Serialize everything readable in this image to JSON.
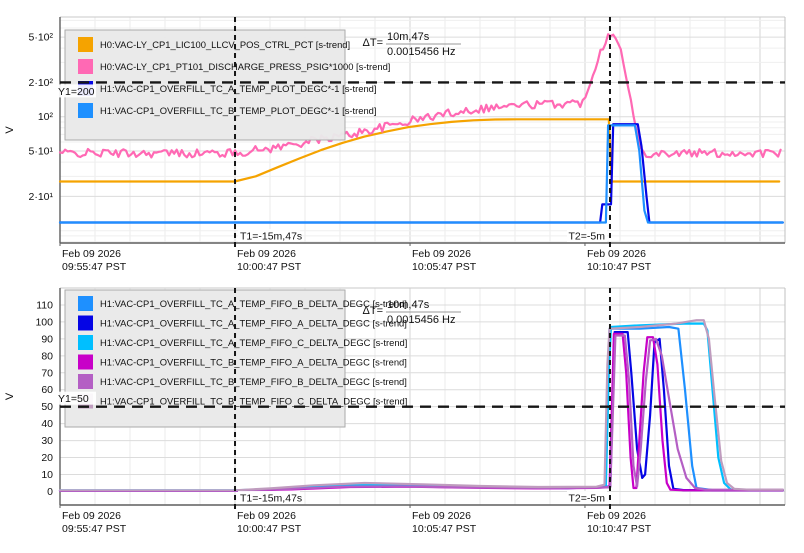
{
  "app": {
    "background": "#ffffff"
  },
  "chart_data": [
    {
      "type": "line",
      "title": "",
      "xlabel": "",
      "ylabel": "V",
      "scale": "log",
      "ylim": [
        7.8,
        750
      ],
      "grid": true,
      "legend_position": "top-left",
      "yticks": [
        {
          "v": 500,
          "label": "5·10²"
        },
        {
          "v": 200,
          "label": "2·10²"
        },
        {
          "v": 100,
          "label": "10²"
        },
        {
          "v": 50,
          "label": "5·10¹"
        },
        {
          "v": 20,
          "label": "2·10¹"
        }
      ],
      "minor_yticks": [
        8,
        9,
        10,
        30,
        40,
        60,
        70,
        80,
        90,
        300,
        400,
        600,
        700
      ],
      "xticks": [
        {
          "f": 0.0,
          "line1": "Feb 09 2026",
          "line2": "09:55:47 PST"
        },
        {
          "f": 0.2414,
          "line1": "Feb 09 2026",
          "line2": "10:00:47 PST"
        },
        {
          "f": 0.4828,
          "line1": "Feb 09 2026",
          "line2": "10:05:47 PST"
        },
        {
          "f": 0.7241,
          "line1": "Feb 09 2026",
          "line2": "10:10:47 PST"
        }
      ],
      "minute_grid_step": 0.0482759,
      "delta_t": {
        "label": "ΔT=",
        "time": "10m,47s",
        "freq": "0.0015456 Hz"
      },
      "cursors": {
        "t1": {
          "f": 0.2414,
          "label": "T1=-15m,47s"
        },
        "t2": {
          "f": 0.7586,
          "label": "T2=-5m"
        },
        "y1": {
          "value": 200,
          "label": "Y1=200"
        }
      },
      "series": [
        {
          "label": "H0:VAC-LY_CP1_LIC100_LLCV_POS_CTRL_PCT [s-trend]",
          "color": "#F5A300",
          "points": [
            [
              0,
              27
            ],
            [
              0.241,
              27
            ],
            [
              0.27,
              30
            ],
            [
              0.3,
              36
            ],
            [
              0.33,
              43
            ],
            [
              0.36,
              51
            ],
            [
              0.39,
              59
            ],
            [
              0.42,
              67
            ],
            [
              0.45,
              74
            ],
            [
              0.48,
              81
            ],
            [
              0.51,
              86
            ],
            [
              0.54,
              90
            ],
            [
              0.57,
              93
            ],
            [
              0.6,
              94.5
            ],
            [
              0.63,
              95
            ],
            [
              0.757,
              95
            ],
            [
              0.761,
              27
            ],
            [
              0.992,
              27
            ]
          ]
        },
        {
          "label": "H0:VAC-LY_CP1_PT101_DISCHARGE_PRESS_PSIG*1000 [s-trend]",
          "color": "#FF69B4",
          "noise": {
            "amp": 0.085,
            "step": 0.0035,
            "seed": 42
          },
          "points": [
            [
              0,
              48
            ],
            [
              0.241,
              48
            ],
            [
              0.3,
              54
            ],
            [
              0.35,
              62
            ],
            [
              0.4,
              70
            ],
            [
              0.45,
              82
            ],
            [
              0.5,
              97
            ],
            [
              0.55,
              112
            ],
            [
              0.6,
              122
            ],
            [
              0.65,
              128
            ],
            [
              0.7,
              131
            ],
            [
              0.723,
              133
            ],
            [
              0.731,
              200
            ],
            [
              0.74,
              300
            ],
            [
              0.752,
              460
            ],
            [
              0.758,
              540
            ],
            [
              0.763,
              555
            ],
            [
              0.768,
              520
            ],
            [
              0.776,
              300
            ],
            [
              0.786,
              150
            ],
            [
              0.793,
              85
            ],
            [
              0.8,
              52
            ],
            [
              0.81,
              48
            ],
            [
              0.997,
              48
            ]
          ]
        },
        {
          "label": "H1:VAC-CP1_OVERFILL_TC_A_TEMP_PLOT_DEGC*-1 [s-trend]",
          "color": "#0505E5",
          "points": [
            [
              0,
              11.8
            ],
            [
              0.745,
              11.8
            ],
            [
              0.748,
              17
            ],
            [
              0.76,
              17
            ],
            [
              0.763,
              86
            ],
            [
              0.797,
              86
            ],
            [
              0.802,
              55
            ],
            [
              0.809,
              20
            ],
            [
              0.813,
              11.8
            ],
            [
              0.997,
              11.8
            ]
          ]
        },
        {
          "label": "H1:VAC-CP1_OVERFILL_TC_B_TEMP_PLOT_DEGC*-1 [s-trend]",
          "color": "#1E90FF",
          "points": [
            [
              0,
              11.8
            ],
            [
              0.753,
              11.8
            ],
            [
              0.756,
              84
            ],
            [
              0.793,
              84
            ],
            [
              0.799,
              50
            ],
            [
              0.806,
              15
            ],
            [
              0.811,
              11.8
            ],
            [
              0.997,
              11.8
            ]
          ]
        }
      ]
    },
    {
      "type": "line",
      "title": "",
      "xlabel": "",
      "ylabel": "V",
      "scale": "linear",
      "ylim": [
        -8,
        120
      ],
      "grid": true,
      "legend_position": "top-left",
      "yticks": [
        {
          "v": 110,
          "label": "110"
        },
        {
          "v": 100,
          "label": "100"
        },
        {
          "v": 90,
          "label": "90"
        },
        {
          "v": 80,
          "label": "80"
        },
        {
          "v": 70,
          "label": "70"
        },
        {
          "v": 60,
          "label": "60"
        },
        {
          "v": 50,
          "label": "50"
        },
        {
          "v": 40,
          "label": "40"
        },
        {
          "v": 30,
          "label": "30"
        },
        {
          "v": 20,
          "label": "20"
        },
        {
          "v": 10,
          "label": "10"
        },
        {
          "v": 0,
          "label": "0"
        }
      ],
      "minor_yticks": [],
      "xticks": [
        {
          "f": 0.0,
          "line1": "Feb 09 2026",
          "line2": "09:55:47 PST"
        },
        {
          "f": 0.2414,
          "line1": "Feb 09 2026",
          "line2": "10:00:47 PST"
        },
        {
          "f": 0.4828,
          "line1": "Feb 09 2026",
          "line2": "10:05:47 PST"
        },
        {
          "f": 0.7241,
          "line1": "Feb 09 2026",
          "line2": "10:10:47 PST"
        }
      ],
      "minute_grid_step": 0.0482759,
      "delta_t": {
        "label": "ΔT=",
        "time": "10m,47s",
        "freq": "0.0015456 Hz"
      },
      "cursors": {
        "t1": {
          "f": 0.2414,
          "label": "T1=-15m,47s"
        },
        "t2": {
          "f": 0.7586,
          "label": "T2=-5m"
        },
        "y1": {
          "value": 50,
          "label": "Y1=50"
        }
      },
      "series": [
        {
          "label": "H1:VAC-CP1_OVERFILL_TC_A_TEMP_FIFO_B_DELTA_DEGC [s-trend]",
          "color": "#1E90FF",
          "points": [
            [
              0,
              0.5
            ],
            [
              0.241,
              0.5
            ],
            [
              0.3,
              1.5
            ],
            [
              0.36,
              3
            ],
            [
              0.43,
              3.8
            ],
            [
              0.5,
              3.2
            ],
            [
              0.58,
              2.4
            ],
            [
              0.66,
              2
            ],
            [
              0.74,
              2.3
            ],
            [
              0.752,
              3
            ],
            [
              0.755,
              60
            ],
            [
              0.758,
              96
            ],
            [
              0.8,
              96
            ],
            [
              0.84,
              97
            ],
            [
              0.853,
              96
            ],
            [
              0.862,
              60
            ],
            [
              0.872,
              15
            ],
            [
              0.878,
              2
            ],
            [
              0.9,
              0.8
            ],
            [
              0.997,
              0.8
            ]
          ]
        },
        {
          "label": "H1:VAC-CP1_OVERFILL_TC_A_TEMP_FIFO_A_DELTA_DEGC [s-trend]",
          "color": "#0505E5",
          "points": [
            [
              0,
              0.4
            ],
            [
              0.241,
              0.4
            ],
            [
              0.31,
              1.4
            ],
            [
              0.38,
              3
            ],
            [
              0.45,
              3.6
            ],
            [
              0.52,
              3
            ],
            [
              0.6,
              2.2
            ],
            [
              0.7,
              1.9
            ],
            [
              0.75,
              2.5
            ],
            [
              0.759,
              3
            ],
            [
              0.762,
              50
            ],
            [
              0.765,
              94
            ],
            [
              0.783,
              94
            ],
            [
              0.788,
              70
            ],
            [
              0.796,
              25
            ],
            [
              0.803,
              8
            ],
            [
              0.807,
              10
            ],
            [
              0.814,
              45
            ],
            [
              0.82,
              88
            ],
            [
              0.827,
              90
            ],
            [
              0.833,
              60
            ],
            [
              0.84,
              15
            ],
            [
              0.846,
              1.5
            ],
            [
              0.86,
              0.8
            ],
            [
              0.997,
              0.8
            ]
          ]
        },
        {
          "label": "H1:VAC-CP1_OVERFILL_TC_A_TEMP_FIFO_C_DELTA_DEGC [s-trend]",
          "color": "#00BFFF",
          "points": [
            [
              0,
              0.6
            ],
            [
              0.241,
              0.6
            ],
            [
              0.3,
              1.6
            ],
            [
              0.37,
              3.2
            ],
            [
              0.44,
              4
            ],
            [
              0.52,
              3.4
            ],
            [
              0.6,
              2.5
            ],
            [
              0.68,
              2.1
            ],
            [
              0.74,
              2.4
            ],
            [
              0.753,
              3.5
            ],
            [
              0.757,
              70
            ],
            [
              0.76,
              97
            ],
            [
              0.8,
              98
            ],
            [
              0.86,
              99
            ],
            [
              0.888,
              99
            ],
            [
              0.893,
              95
            ],
            [
              0.9,
              60
            ],
            [
              0.908,
              20
            ],
            [
              0.916,
              5
            ],
            [
              0.925,
              1.2
            ],
            [
              0.95,
              0.8
            ],
            [
              0.997,
              0.8
            ]
          ]
        },
        {
          "label": "H1:VAC-CP1_OVERFILL_TC_B_TEMP_FIFO_A_DELTA_DEGC [s-trend]",
          "color": "#C800C8",
          "points": [
            [
              0,
              0.4
            ],
            [
              0.241,
              0.4
            ],
            [
              0.32,
              1.2
            ],
            [
              0.4,
              2.6
            ],
            [
              0.48,
              2.8
            ],
            [
              0.56,
              2.2
            ],
            [
              0.66,
              1.8
            ],
            [
              0.74,
              2.1
            ],
            [
              0.758,
              2.5
            ],
            [
              0.761,
              45
            ],
            [
              0.764,
              93
            ],
            [
              0.776,
              93
            ],
            [
              0.781,
              70
            ],
            [
              0.787,
              20
            ],
            [
              0.791,
              2
            ],
            [
              0.795,
              2
            ],
            [
              0.799,
              30
            ],
            [
              0.805,
              70
            ],
            [
              0.81,
              91
            ],
            [
              0.818,
              91
            ],
            [
              0.824,
              75
            ],
            [
              0.831,
              30
            ],
            [
              0.837,
              5
            ],
            [
              0.842,
              1
            ],
            [
              0.86,
              0.7
            ],
            [
              0.997,
              0.7
            ]
          ]
        },
        {
          "label": "H1:VAC-CP1_OVERFILL_TC_B_TEMP_FIFO_B_DELTA_DEGC [s-trend]",
          "color": "#B45FC4",
          "points": [
            [
              0,
              0.5
            ],
            [
              0.241,
              0.5
            ],
            [
              0.31,
              1.3
            ],
            [
              0.39,
              2.8
            ],
            [
              0.47,
              3
            ],
            [
              0.56,
              2.4
            ],
            [
              0.66,
              2
            ],
            [
              0.74,
              2.2
            ],
            [
              0.759,
              2.6
            ],
            [
              0.762,
              40
            ],
            [
              0.766,
              92
            ],
            [
              0.779,
              92
            ],
            [
              0.785,
              65
            ],
            [
              0.791,
              15
            ],
            [
              0.796,
              3
            ],
            [
              0.801,
              25
            ],
            [
              0.808,
              65
            ],
            [
              0.814,
              89
            ],
            [
              0.822,
              90
            ],
            [
              0.83,
              80
            ],
            [
              0.84,
              55
            ],
            [
              0.852,
              25
            ],
            [
              0.864,
              8
            ],
            [
              0.876,
              2
            ],
            [
              0.89,
              1
            ],
            [
              0.997,
              1
            ]
          ]
        },
        {
          "label": "H1:VAC-CP1_OVERFILL_TC_B_TEMP_FIFO_C_DELTA_DEGC [s-trend]",
          "color": "#BF9CBE",
          "points": [
            [
              0,
              0.7
            ],
            [
              0.241,
              0.7
            ],
            [
              0.29,
              1.8
            ],
            [
              0.35,
              3.6
            ],
            [
              0.42,
              5
            ],
            [
              0.5,
              4.2
            ],
            [
              0.58,
              3.2
            ],
            [
              0.66,
              2.6
            ],
            [
              0.74,
              2.8
            ],
            [
              0.751,
              4
            ],
            [
              0.755,
              75
            ],
            [
              0.758,
              96
            ],
            [
              0.8,
              97
            ],
            [
              0.85,
              99
            ],
            [
              0.878,
              101
            ],
            [
              0.888,
              101
            ],
            [
              0.895,
              90
            ],
            [
              0.903,
              55
            ],
            [
              0.912,
              18
            ],
            [
              0.92,
              5
            ],
            [
              0.93,
              1.5
            ],
            [
              0.95,
              1
            ],
            [
              0.997,
              1
            ]
          ]
        }
      ]
    }
  ]
}
